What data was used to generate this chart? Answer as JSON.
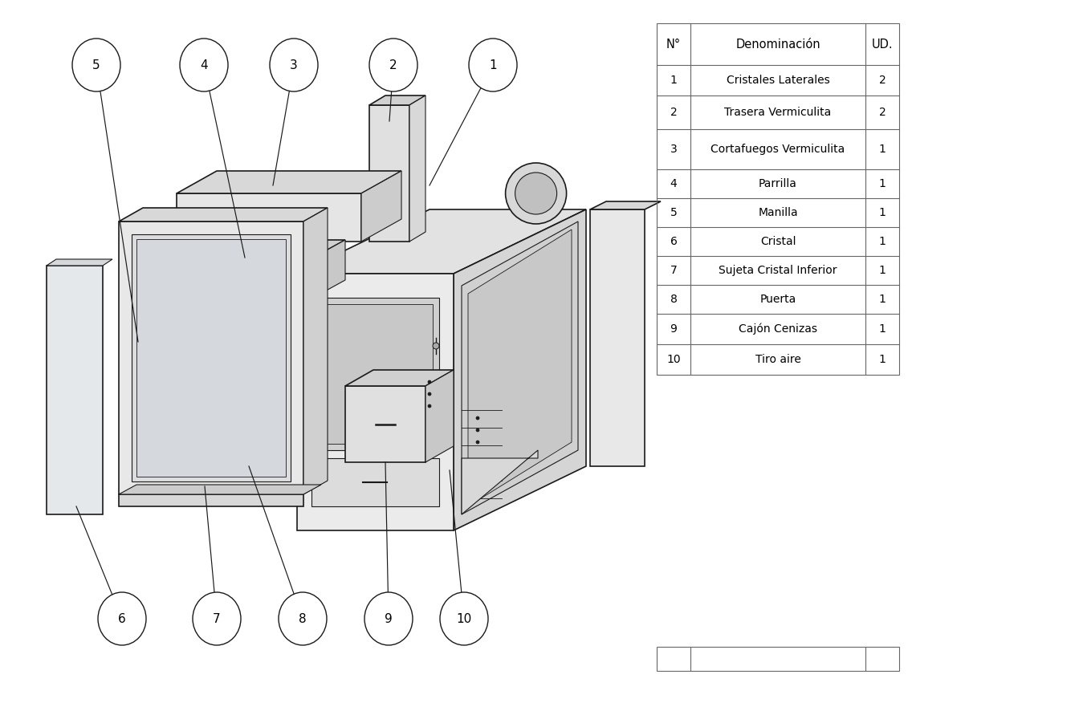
{
  "table_headers": [
    "N°",
    "Denominación",
    "UD."
  ],
  "table_rows": [
    [
      "1",
      "Cristales Laterales",
      "2"
    ],
    [
      "2",
      "Trasera Vermiculita",
      "2"
    ],
    [
      "3",
      "Cortafuegos Vermiculita",
      "1"
    ],
    [
      "4",
      "Parrilla",
      "1"
    ],
    [
      "5",
      "Manilla",
      "1"
    ],
    [
      "6",
      "Cristal",
      "1"
    ],
    [
      "7",
      "Sujeta Cristal Inferior",
      "1"
    ],
    [
      "8",
      "Puerta",
      "1"
    ],
    [
      "9",
      "Cajón Cenizas",
      "1"
    ],
    [
      "10",
      "Tiro aire",
      "1"
    ]
  ],
  "bg_color": "#ffffff",
  "line_color": "#1a1a1a",
  "gray_light": "#e8e8e8",
  "gray_mid": "#d0d0d0",
  "gray_dark": "#b8b8b8",
  "table_line_color": "#666666",
  "font_family": "DejaVu Sans"
}
